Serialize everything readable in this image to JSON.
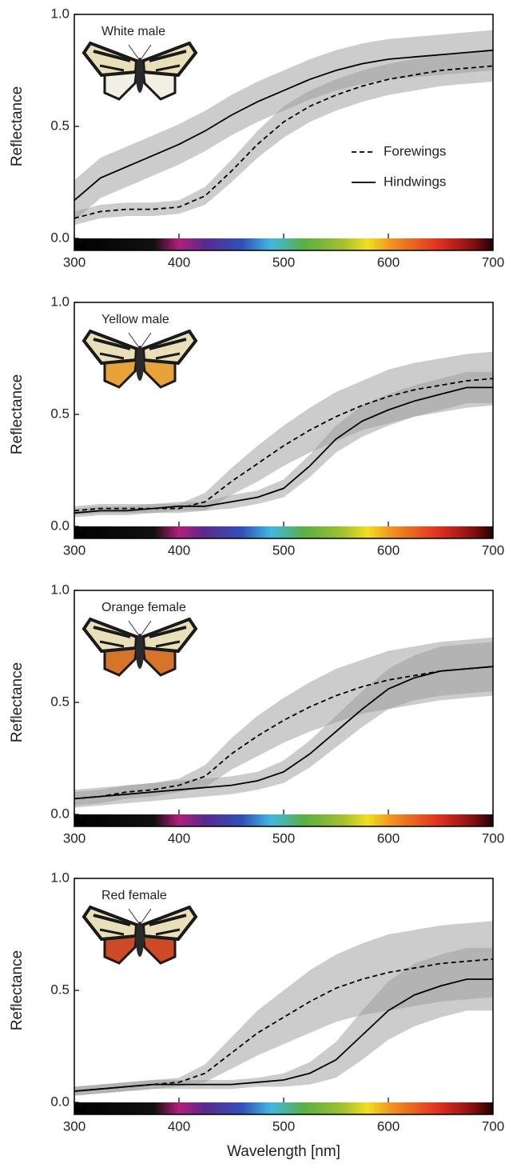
{
  "chart_data": [
    {
      "type": "line",
      "label": "White male",
      "ylabel": "Reflectance",
      "x": [
        300,
        325,
        350,
        375,
        400,
        425,
        450,
        475,
        500,
        525,
        550,
        575,
        600,
        625,
        650,
        675,
        700
      ],
      "xlim": [
        300,
        700
      ],
      "xticks": [
        300,
        400,
        500,
        600,
        700
      ],
      "ylim": [
        0,
        1
      ],
      "yticks": [
        {
          "value": 0,
          "label": "0.0"
        },
        {
          "value": 0.5,
          "label": "0.5"
        },
        {
          "value": 1,
          "label": "1.0"
        }
      ],
      "legend": "right",
      "series": [
        {
          "name": "Forewings",
          "color": "#000000",
          "dash": true,
          "values": [
            0.09,
            0.12,
            0.13,
            0.13,
            0.14,
            0.19,
            0.3,
            0.42,
            0.52,
            0.59,
            0.64,
            0.68,
            0.71,
            0.73,
            0.75,
            0.76,
            0.77
          ],
          "lower": [
            0.06,
            0.09,
            0.1,
            0.1,
            0.11,
            0.15,
            0.25,
            0.36,
            0.45,
            0.52,
            0.57,
            0.61,
            0.64,
            0.66,
            0.68,
            0.69,
            0.7
          ],
          "upper": [
            0.12,
            0.15,
            0.16,
            0.16,
            0.17,
            0.23,
            0.35,
            0.48,
            0.59,
            0.66,
            0.71,
            0.75,
            0.78,
            0.8,
            0.82,
            0.83,
            0.84
          ]
        },
        {
          "name": "Hindwings",
          "color": "#000000",
          "dash": false,
          "values": [
            0.17,
            0.27,
            0.32,
            0.37,
            0.42,
            0.48,
            0.55,
            0.61,
            0.66,
            0.71,
            0.75,
            0.78,
            0.8,
            0.81,
            0.82,
            0.83,
            0.84
          ],
          "lower": [
            0.08,
            0.18,
            0.23,
            0.28,
            0.33,
            0.39,
            0.46,
            0.52,
            0.57,
            0.62,
            0.66,
            0.69,
            0.71,
            0.72,
            0.73,
            0.74,
            0.75
          ],
          "upper": [
            0.26,
            0.36,
            0.41,
            0.46,
            0.51,
            0.57,
            0.64,
            0.7,
            0.75,
            0.8,
            0.84,
            0.87,
            0.89,
            0.9,
            0.91,
            0.92,
            0.93
          ]
        }
      ]
    },
    {
      "type": "line",
      "label": "Yellow male",
      "ylabel": "Reflectance",
      "x": [
        300,
        325,
        350,
        375,
        400,
        425,
        450,
        475,
        500,
        525,
        550,
        575,
        600,
        625,
        650,
        675,
        700
      ],
      "xlim": [
        300,
        700
      ],
      "xticks": [
        300,
        400,
        500,
        600,
        700
      ],
      "ylim": [
        0,
        1
      ],
      "yticks": [
        {
          "value": 0,
          "label": "0.0"
        },
        {
          "value": 0.5,
          "label": "0.5"
        },
        {
          "value": 1,
          "label": "1.0"
        }
      ],
      "series": [
        {
          "color": "#000000",
          "dash": true,
          "values": [
            0.07,
            0.08,
            0.08,
            0.08,
            0.08,
            0.11,
            0.2,
            0.28,
            0.36,
            0.43,
            0.49,
            0.54,
            0.58,
            0.61,
            0.63,
            0.65,
            0.66
          ],
          "lower": [
            0.05,
            0.06,
            0.06,
            0.06,
            0.06,
            0.07,
            0.14,
            0.2,
            0.27,
            0.33,
            0.38,
            0.43,
            0.46,
            0.49,
            0.51,
            0.53,
            0.54
          ],
          "upper": [
            0.09,
            0.1,
            0.1,
            0.1,
            0.1,
            0.15,
            0.26,
            0.36,
            0.45,
            0.53,
            0.6,
            0.65,
            0.7,
            0.73,
            0.75,
            0.77,
            0.78
          ]
        },
        {
          "color": "#000000",
          "dash": false,
          "values": [
            0.06,
            0.07,
            0.07,
            0.08,
            0.09,
            0.09,
            0.11,
            0.13,
            0.17,
            0.27,
            0.39,
            0.47,
            0.52,
            0.56,
            0.59,
            0.62,
            0.62
          ],
          "lower": [
            0.04,
            0.05,
            0.05,
            0.06,
            0.07,
            0.07,
            0.08,
            0.1,
            0.13,
            0.22,
            0.33,
            0.4,
            0.45,
            0.49,
            0.52,
            0.55,
            0.55
          ],
          "upper": [
            0.08,
            0.09,
            0.09,
            0.1,
            0.11,
            0.11,
            0.14,
            0.16,
            0.21,
            0.32,
            0.45,
            0.54,
            0.59,
            0.63,
            0.66,
            0.69,
            0.69
          ]
        }
      ]
    },
    {
      "type": "line",
      "label": "Orange female",
      "ylabel": "Reflectance",
      "x": [
        300,
        325,
        350,
        375,
        400,
        425,
        450,
        475,
        500,
        525,
        550,
        575,
        600,
        625,
        650,
        675,
        700
      ],
      "xlim": [
        300,
        700
      ],
      "xticks": [
        300,
        400,
        500,
        600,
        700
      ],
      "ylim": [
        0,
        1
      ],
      "yticks": [
        {
          "value": 0,
          "label": "0.0"
        },
        {
          "value": 0.5,
          "label": "0.5"
        },
        {
          "value": 1,
          "label": "1.0"
        }
      ],
      "series": [
        {
          "color": "#000000",
          "dash": true,
          "values": [
            0.07,
            0.08,
            0.1,
            0.11,
            0.13,
            0.17,
            0.27,
            0.35,
            0.42,
            0.48,
            0.53,
            0.57,
            0.6,
            0.62,
            0.64,
            0.65,
            0.66
          ],
          "lower": [
            0.04,
            0.05,
            0.07,
            0.08,
            0.1,
            0.12,
            0.2,
            0.26,
            0.32,
            0.37,
            0.41,
            0.45,
            0.47,
            0.49,
            0.51,
            0.52,
            0.53
          ],
          "upper": [
            0.1,
            0.11,
            0.13,
            0.14,
            0.16,
            0.22,
            0.34,
            0.44,
            0.52,
            0.59,
            0.65,
            0.69,
            0.73,
            0.75,
            0.77,
            0.78,
            0.79
          ]
        },
        {
          "color": "#000000",
          "dash": false,
          "values": [
            0.07,
            0.08,
            0.09,
            0.1,
            0.11,
            0.12,
            0.13,
            0.15,
            0.19,
            0.27,
            0.37,
            0.47,
            0.56,
            0.61,
            0.64,
            0.65,
            0.66
          ],
          "lower": [
            0.03,
            0.04,
            0.05,
            0.06,
            0.07,
            0.08,
            0.09,
            0.11,
            0.14,
            0.21,
            0.3,
            0.39,
            0.47,
            0.51,
            0.53,
            0.54,
            0.55
          ],
          "upper": [
            0.11,
            0.12,
            0.13,
            0.14,
            0.15,
            0.16,
            0.17,
            0.19,
            0.24,
            0.33,
            0.44,
            0.55,
            0.65,
            0.71,
            0.75,
            0.76,
            0.77
          ]
        }
      ]
    },
    {
      "type": "line",
      "label": "Red female",
      "ylabel": "Reflectance",
      "xlabel": "Wavelength [nm]",
      "x": [
        300,
        325,
        350,
        375,
        400,
        425,
        450,
        475,
        500,
        525,
        550,
        575,
        600,
        625,
        650,
        675,
        700
      ],
      "xlim": [
        300,
        700
      ],
      "xticks": [
        300,
        400,
        500,
        600,
        700
      ],
      "ylim": [
        0,
        1
      ],
      "yticks": [
        {
          "value": 0,
          "label": "0.0"
        },
        {
          "value": 0.5,
          "label": "0.5"
        },
        {
          "value": 1,
          "label": "1.0"
        }
      ],
      "series": [
        {
          "color": "#000000",
          "dash": true,
          "values": [
            0.05,
            0.06,
            0.07,
            0.08,
            0.09,
            0.13,
            0.22,
            0.31,
            0.38,
            0.45,
            0.51,
            0.55,
            0.58,
            0.6,
            0.62,
            0.63,
            0.64
          ],
          "lower": [
            0.03,
            0.04,
            0.05,
            0.06,
            0.07,
            0.09,
            0.15,
            0.21,
            0.26,
            0.31,
            0.36,
            0.39,
            0.41,
            0.43,
            0.45,
            0.46,
            0.47
          ],
          "upper": [
            0.07,
            0.08,
            0.09,
            0.1,
            0.11,
            0.17,
            0.29,
            0.41,
            0.5,
            0.59,
            0.66,
            0.71,
            0.75,
            0.77,
            0.79,
            0.8,
            0.81
          ]
        },
        {
          "color": "#000000",
          "dash": false,
          "values": [
            0.05,
            0.06,
            0.07,
            0.08,
            0.08,
            0.08,
            0.08,
            0.09,
            0.1,
            0.13,
            0.19,
            0.3,
            0.41,
            0.48,
            0.52,
            0.55,
            0.55
          ],
          "lower": [
            0.03,
            0.04,
            0.05,
            0.06,
            0.06,
            0.06,
            0.06,
            0.07,
            0.07,
            0.08,
            0.11,
            0.19,
            0.28,
            0.34,
            0.38,
            0.41,
            0.41
          ],
          "upper": [
            0.07,
            0.08,
            0.09,
            0.1,
            0.1,
            0.1,
            0.1,
            0.11,
            0.13,
            0.18,
            0.27,
            0.41,
            0.54,
            0.62,
            0.66,
            0.69,
            0.69
          ]
        }
      ]
    }
  ]
}
